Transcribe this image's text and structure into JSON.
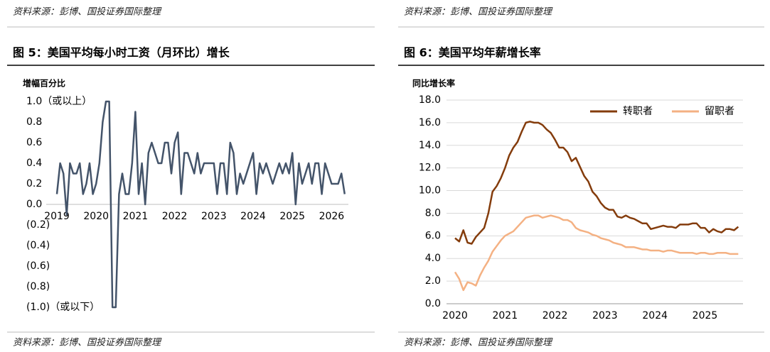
{
  "source": "资料来源：彭博、国投证券国际整理",
  "chart_data": [
    {
      "type": "line",
      "title": "图 5：美国平均每小时工资（月环比）增长",
      "y_label": "增幅百分比",
      "categories": [
        "2019",
        null,
        null,
        null,
        null,
        null,
        null,
        null,
        null,
        null,
        null,
        null,
        "2020",
        null,
        null,
        null,
        null,
        null,
        null,
        null,
        null,
        null,
        null,
        null,
        "2021",
        null,
        null,
        null,
        null,
        null,
        null,
        null,
        null,
        null,
        null,
        null,
        "2022",
        null,
        null,
        null,
        null,
        null,
        null,
        null,
        null,
        null,
        null,
        null,
        "2023",
        null,
        null,
        null,
        null,
        null,
        null,
        null,
        null,
        null,
        null,
        null,
        "2024",
        null,
        null,
        null,
        null,
        null,
        null,
        null,
        null,
        null,
        null,
        null,
        "2025",
        null,
        null,
        null,
        null,
        null,
        null,
        null,
        null,
        null,
        null,
        null,
        "2026",
        null,
        null,
        null,
        null
      ],
      "series": [
        {
          "color": "#44546a",
          "values": [
            0.1,
            0.4,
            0.3,
            -0.1,
            0.4,
            0.3,
            0.3,
            0.4,
            0.1,
            0.2,
            0.4,
            0.1,
            0.2,
            0.4,
            0.8,
            1.0,
            1.0,
            -1.0,
            -1.0,
            0.1,
            0.3,
            0.1,
            0.1,
            0.4,
            0.9,
            0.1,
            0.4,
            0.0,
            0.5,
            0.6,
            0.5,
            0.4,
            0.4,
            0.6,
            0.6,
            0.3,
            0.6,
            0.7,
            0.1,
            0.5,
            0.5,
            0.4,
            0.3,
            0.5,
            0.3,
            0.4,
            0.4,
            0.4,
            0.4,
            0.1,
            0.4,
            0.4,
            0.1,
            0.6,
            0.5,
            0.1,
            0.3,
            0.2,
            0.3,
            0.4,
            0.5,
            0.1,
            0.4,
            0.3,
            0.4,
            0.3,
            0.2,
            0.3,
            0.4,
            0.3,
            0.4,
            0.3,
            0.5,
            0.0,
            0.4,
            0.2,
            0.3,
            0.4,
            0.2,
            0.4,
            0.4,
            0.1,
            0.4,
            0.3,
            0.2,
            0.2,
            0.2,
            0.3,
            0.1
          ]
        }
      ],
      "ylim": [
        -1,
        1
      ],
      "yticks": [
        {
          "value": 1,
          "label": "1.0（或以上）"
        },
        0.8,
        0.6,
        0.4,
        0.2,
        {
          "value": 0,
          "label": "0.0"
        },
        {
          "value": -0.2,
          "label": "(0.2)"
        },
        {
          "value": -0.4,
          "label": "(0.4)"
        },
        {
          "value": -0.6,
          "label": "(0.6)"
        },
        {
          "value": -0.8,
          "label": "(0.8)"
        },
        {
          "value": -1,
          "label": "(1.0)（或以下）"
        }
      ],
      "negative_tick_label_color": "#ff0000",
      "grid": false
    },
    {
      "type": "line",
      "title": "图 6：美国平均年薪增长率",
      "y_label": "同比增长率",
      "categories": [
        "2020",
        null,
        null,
        null,
        null,
        null,
        null,
        null,
        null,
        null,
        null,
        null,
        "2021",
        null,
        null,
        null,
        null,
        null,
        null,
        null,
        null,
        null,
        null,
        null,
        "2022",
        null,
        null,
        null,
        null,
        null,
        null,
        null,
        null,
        null,
        null,
        null,
        "2023",
        null,
        null,
        null,
        null,
        null,
        null,
        null,
        null,
        null,
        null,
        null,
        "2024",
        null,
        null,
        null,
        null,
        null,
        null,
        null,
        null,
        null,
        null,
        null,
        "2025",
        null,
        null,
        null,
        null,
        null,
        null,
        null,
        null
      ],
      "series": [
        {
          "name": "转职者",
          "color": "#843c0c",
          "values": [
            5.8,
            5.5,
            6.5,
            5.4,
            5.3,
            5.9,
            6.3,
            6.7,
            8.0,
            9.9,
            10.4,
            11.1,
            12.0,
            13.1,
            13.8,
            14.3,
            15.2,
            16.0,
            16.1,
            16.0,
            16.0,
            15.8,
            15.4,
            15.1,
            14.5,
            13.8,
            13.8,
            13.4,
            12.6,
            12.9,
            12.1,
            11.3,
            10.8,
            9.9,
            9.5,
            8.9,
            8.5,
            8.3,
            8.3,
            7.7,
            7.6,
            7.8,
            7.6,
            7.5,
            7.3,
            7.1,
            7.1,
            6.6,
            6.7,
            6.8,
            6.9,
            6.8,
            6.8,
            6.7,
            7.0,
            7.0,
            7.0,
            7.1,
            7.1,
            6.7,
            6.7,
            6.3,
            6.6,
            6.4,
            6.3,
            6.6,
            6.6,
            6.5,
            6.8
          ]
        },
        {
          "name": "留职者",
          "color": "#f4b183",
          "values": [
            2.8,
            2.2,
            1.2,
            1.9,
            1.8,
            1.6,
            2.5,
            3.2,
            3.8,
            4.6,
            5.1,
            5.6,
            6.0,
            6.2,
            6.4,
            6.8,
            7.2,
            7.6,
            7.7,
            7.8,
            7.8,
            7.6,
            7.7,
            7.8,
            7.7,
            7.6,
            7.4,
            7.4,
            7.2,
            6.7,
            6.5,
            6.4,
            6.3,
            6.1,
            6.0,
            5.8,
            5.7,
            5.6,
            5.4,
            5.3,
            5.2,
            5.0,
            5.0,
            5.0,
            4.9,
            4.8,
            4.8,
            4.7,
            4.7,
            4.7,
            4.6,
            4.7,
            4.7,
            4.6,
            4.5,
            4.5,
            4.5,
            4.5,
            4.4,
            4.5,
            4.5,
            4.4,
            4.4,
            4.5,
            4.5,
            4.5,
            4.4,
            4.4,
            4.4
          ]
        }
      ],
      "ylim": [
        0,
        18
      ],
      "yticks": [
        {
          "value": 0,
          "label": "0.0"
        },
        {
          "value": 2,
          "label": "2.0"
        },
        {
          "value": 4,
          "label": "4.0"
        },
        {
          "value": 6,
          "label": "6.0"
        },
        {
          "value": 8,
          "label": "8.0"
        },
        {
          "value": 10,
          "label": "10.0"
        },
        {
          "value": 12,
          "label": "12.0"
        },
        {
          "value": 14,
          "label": "14.0"
        },
        {
          "value": 16,
          "label": "16.0"
        },
        {
          "value": 18,
          "label": "18.0"
        }
      ],
      "grid": true,
      "legend": "upper right"
    }
  ]
}
